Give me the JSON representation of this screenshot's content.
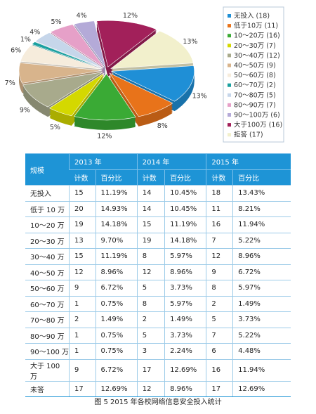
{
  "chart_data": {
    "type": "pie",
    "categories": [
      "无投入 (18)",
      "低于10万 (11)",
      "10～20万 (16)",
      "20～30万 (7)",
      "30～40万 (12)",
      "40～50万 (9)",
      "50～60万 (8)",
      "60～70万 (2)",
      "70～80万 (5)",
      "80～90万 (7)",
      "90～100万 (6)",
      "大于100万 (16)",
      "拒答 (17)"
    ],
    "values": [
      13,
      8,
      12,
      5,
      9,
      7,
      6,
      1,
      4,
      5,
      4,
      12,
      13
    ],
    "value_labels": [
      "13%",
      "8%",
      "12%",
      "5%",
      "9%",
      "7%",
      "6%",
      "1%",
      "4%",
      "5%",
      "4%",
      "12%",
      "13%"
    ],
    "colors": [
      "#1f8fd6",
      "#e8731a",
      "#3aaa35",
      "#d4d800",
      "#a8aa8c",
      "#d8b48c",
      "#f6ecdc",
      "#1aa0a0",
      "#c6d6ea",
      "#e6a0c8",
      "#b4aad8",
      "#a2205a",
      "#f2f0cc"
    ],
    "legend": "right"
  },
  "table": {
    "scale": "规模",
    "years": [
      "2013 年",
      "2014 年",
      "2015 年"
    ],
    "sub_headers": [
      "计数",
      "百分比",
      "计数",
      "百分比",
      "计数",
      "百分比"
    ],
    "rows": [
      [
        "无投入",
        "15",
        "11.19%",
        "14",
        "10.45%",
        "18",
        "13.43%"
      ],
      [
        "低于 10 万",
        "20",
        "14.93%",
        "14",
        "10.45%",
        "11",
        "8.21%"
      ],
      [
        "10～20 万",
        "19",
        "14.18%",
        "15",
        "11.19%",
        "16",
        "11.94%"
      ],
      [
        "20～30 万",
        "13",
        "9.70%",
        "19",
        "14.18%",
        "7",
        "5.22%"
      ],
      [
        "30～40 万",
        "15",
        "11.19%",
        "8",
        "5.97%",
        "12",
        "8.96%"
      ],
      [
        "40～50 万",
        "12",
        "8.96%",
        "12",
        "8.96%",
        "9",
        "6.72%"
      ],
      [
        "50～60 万",
        "9",
        "6.72%",
        "5",
        "3.73%",
        "8",
        "5.97%"
      ],
      [
        "60～70 万",
        "1",
        "0.75%",
        "8",
        "5.97%",
        "2",
        "1.49%"
      ],
      [
        "70～80 万",
        "2",
        "1.49%",
        "2",
        "1.49%",
        "5",
        "3.73%"
      ],
      [
        "80～90 万",
        "1",
        "0.75%",
        "5",
        "3.73%",
        "7",
        "5.22%"
      ],
      [
        "90～100 万",
        "1",
        "0.75%",
        "3",
        "2.24%",
        "6",
        "4.48%"
      ],
      [
        "大于 100 万",
        "9",
        "6.72%",
        "17",
        "12.69%",
        "16",
        "11.94%"
      ],
      [
        "未答",
        "17",
        "12.69%",
        "12",
        "8.96%",
        "17",
        "12.69%"
      ]
    ]
  },
  "caption": "图 5 2015 年各校网络信息安全投入统计"
}
